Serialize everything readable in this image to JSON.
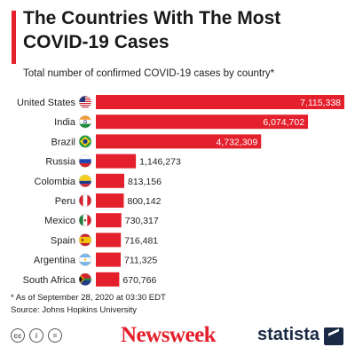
{
  "header": {
    "title": "The Countries With The Most COVID-19 Cases",
    "subtitle": "Total number of confirmed COVID-19 cases by country*"
  },
  "chart_data": {
    "type": "bar",
    "orientation": "horizontal",
    "title": "The Countries With The Most COVID-19 Cases",
    "subtitle": "Total number of confirmed COVID-19 cases by country*",
    "categories": [
      "United States",
      "India",
      "Brazil",
      "Russia",
      "Colombia",
      "Peru",
      "Mexico",
      "Spain",
      "Argentina",
      "South Africa"
    ],
    "values": [
      7115338,
      6074702,
      4732309,
      1146273,
      813156,
      800142,
      730317,
      716481,
      711325,
      670766
    ],
    "value_labels": [
      "7,115,338",
      "6,074,702",
      "4,732,309",
      "1,146,273",
      "813,156",
      "800,142",
      "730,317",
      "716,481",
      "711,325",
      "670,766"
    ],
    "flags": [
      "us-flag-icon",
      "india-flag-icon",
      "brazil-flag-icon",
      "russia-flag-icon",
      "colombia-flag-icon",
      "peru-flag-icon",
      "mexico-flag-icon",
      "spain-flag-icon",
      "argentina-flag-icon",
      "south-africa-flag-icon"
    ],
    "bar_color": "#e4202c",
    "grid": false,
    "legend": "none"
  },
  "footer": {
    "note": "* As of September 28, 2020 at 03:30 EDT",
    "source": "Source: Johns Hopkins University",
    "license_icons": [
      "cc-icon",
      "by-icon",
      "nd-icon"
    ],
    "license_glyphs": [
      "cc",
      "i",
      "="
    ],
    "brand_newsweek": "Newsweek",
    "brand_statista": "statista"
  }
}
